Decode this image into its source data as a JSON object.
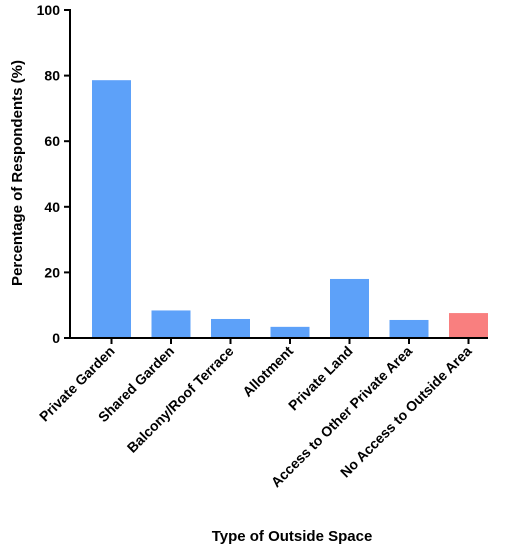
{
  "chart_data": {
    "type": "bar",
    "title": "",
    "xlabel": "Type of Outside Space",
    "ylabel": "Percentage of Respondents (%)",
    "categories": [
      "Private Garden",
      "Shared Garden",
      "Balcony/Roof Terrace",
      "Allotment",
      "Private Land",
      "Access to Other Private Area",
      "No Access to Outside Area"
    ],
    "values": [
      78.6,
      8.4,
      5.8,
      3.4,
      18.0,
      5.5,
      7.6
    ],
    "bar_colors": [
      "#5da1f9",
      "#5da1f9",
      "#5da1f9",
      "#5da1f9",
      "#5da1f9",
      "#5da1f9",
      "#f97f7f"
    ],
    "ylim": [
      0,
      100
    ],
    "yticks": [
      0,
      20,
      40,
      60,
      80,
      100
    ],
    "grid": false,
    "legend": "none"
  }
}
